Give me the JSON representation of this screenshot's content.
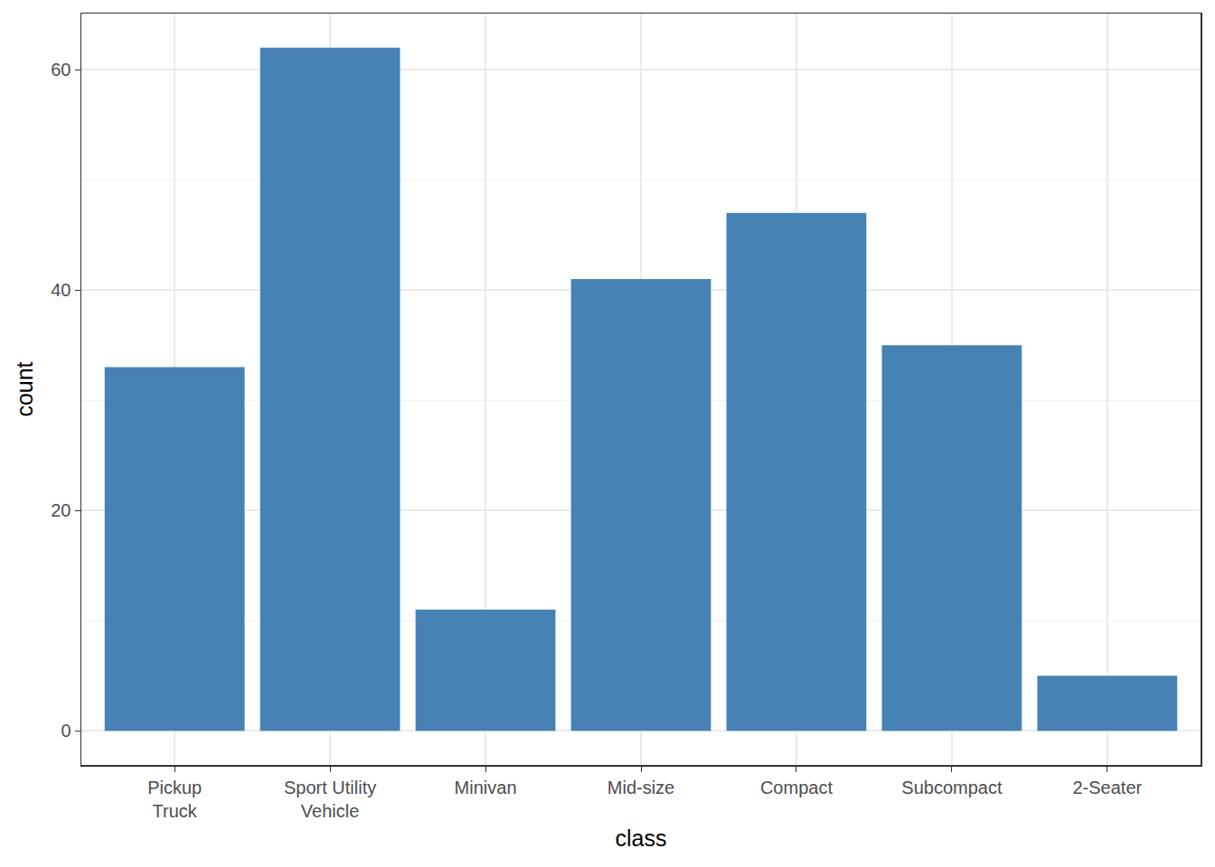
{
  "chart_data": {
    "type": "bar",
    "xlabel": "class",
    "ylabel": "count",
    "categories": [
      "Pickup\nTruck",
      "Sport Utility\nVehicle",
      "Minivan",
      "Mid-size",
      "Compact",
      "Subcompact",
      "2-Seater"
    ],
    "values": [
      33,
      62,
      11,
      41,
      47,
      35,
      5
    ],
    "color": "#4682b4",
    "ylim": [
      -3.1,
      65.1
    ],
    "yticks": [
      0,
      20,
      40,
      60
    ],
    "grid": true
  }
}
